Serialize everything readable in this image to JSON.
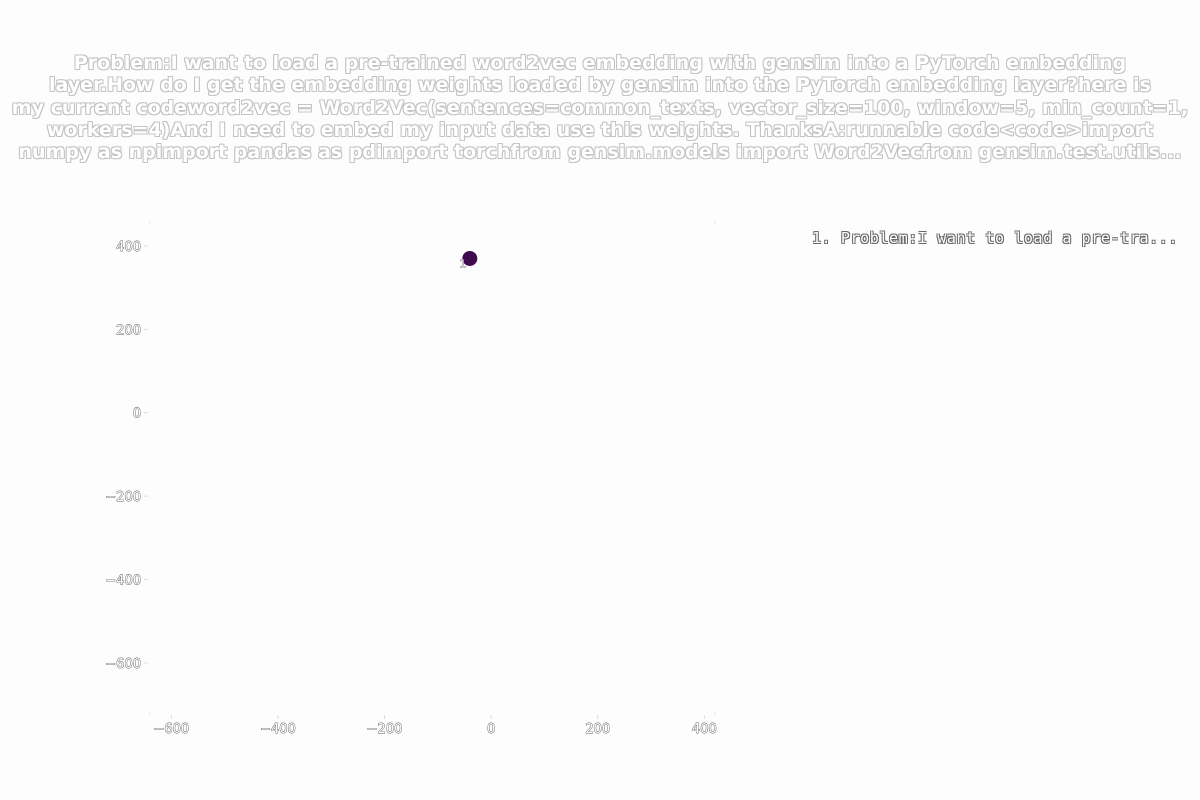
{
  "chart_data": {
    "type": "scatter",
    "title": "Problem:I want to load a pre-trained word2vec embedding with gensim into a PyTorch embedding\nlayer.How do I get the embedding weights loaded by gensim into the PyTorch embedding layer?here is\nmy current codeword2vec = Word2Vec(sentences=common_texts, vector_size=100, window=5, min_count=1,\nworkers=4)And I need to embed my input data use this weights. ThanksA:runnable code<code>import\nnumpy as npimport pandas as pdimport torchfrom gensim.models import Word2Vecfrom gensim.test.utils...",
    "xlabel": "",
    "ylabel": "",
    "xlim": [
      -640,
      420
    ],
    "ylim": [
      -720,
      455
    ],
    "x_ticks": [
      -600,
      -400,
      -200,
      0,
      200,
      400
    ],
    "y_ticks": [
      400,
      200,
      0,
      -200,
      -400,
      -600
    ],
    "x_tick_labels": [
      "−600",
      "−400",
      "−200",
      "0",
      "200",
      "400"
    ],
    "y_tick_labels": [
      "400",
      "200",
      "0",
      "−200",
      "−400",
      "−600"
    ],
    "grid": false,
    "legend_position": "top-right",
    "points": [
      {
        "x": -40,
        "y": 370,
        "label": "1",
        "color": "#3f0a4e"
      }
    ],
    "legend": [
      "1. Problem:I want to load a pre-tra..."
    ]
  }
}
